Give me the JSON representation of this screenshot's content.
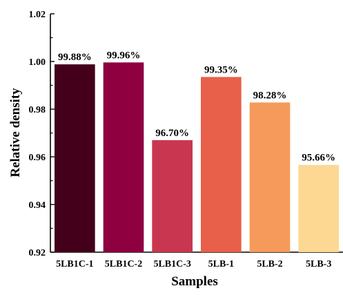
{
  "chart_data": {
    "type": "bar",
    "categories": [
      "5LB1C-1",
      "5LB1C-2",
      "5LB1C-3",
      "5LB-1",
      "5LB-2",
      "5LB-3"
    ],
    "values": [
      0.9988,
      0.9996,
      0.967,
      0.9935,
      0.9828,
      0.9566
    ],
    "data_labels": [
      "99.88%",
      "99.96%",
      "96.70%",
      "99.35%",
      "98.28%",
      "95.66%"
    ],
    "bar_colors": [
      "#44001a",
      "#8e0040",
      "#c9364f",
      "#e8604a",
      "#f59a5a",
      "#fcd893"
    ],
    "xlabel": "Samples",
    "ylabel": "Relative density",
    "ylim": [
      0.92,
      1.02
    ],
    "yticks": [
      0.92,
      0.94,
      0.96,
      0.98,
      1.0,
      1.02
    ],
    "ytick_labels": [
      "0.92",
      "0.94",
      "0.96",
      "0.98",
      "1.00",
      "1.02"
    ],
    "grid": false,
    "legend": "none"
  }
}
